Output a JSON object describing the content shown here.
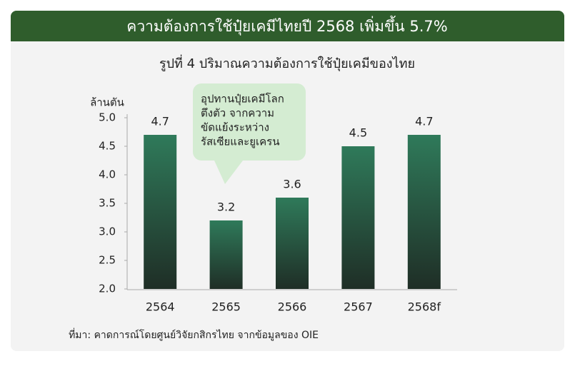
{
  "header": "ความต้องการใช้ปุ๋ยเคมีไทยปี 2568 เพิ่มขึ้น 5.7%",
  "chart_data": {
    "type": "bar",
    "title": "รูปที่ 4 ปริมาณความต้องการใช้ปุ๋ยเคมีของไทย",
    "y_label": "ล้านตัน",
    "categories": [
      "2564",
      "2565",
      "2566",
      "2567",
      "2568f"
    ],
    "values": [
      4.7,
      3.2,
      3.6,
      4.5,
      4.7
    ],
    "color": "#2f7a5a",
    "ylim": [
      2,
      5
    ],
    "yticks": [
      {
        "value": 2,
        "label": "2.0"
      },
      2.5,
      {
        "value": 3,
        "label": "3.0"
      },
      3.5,
      {
        "value": 4,
        "label": "4.0"
      },
      4.5,
      {
        "value": 5,
        "label": "5.0"
      }
    ],
    "grid": false,
    "annotation": [
      "อุปทานปุ๋ยเคมีโลก",
      "ตึงตัว จากความ",
      "ขัดแย้งระหว่าง",
      "รัสเซียและยูเครน"
    ],
    "source": "ที่มา: คาดการณ์โดยศูนย์วิจัยกสิกรไทย จากข้อมูลของ OIE"
  }
}
